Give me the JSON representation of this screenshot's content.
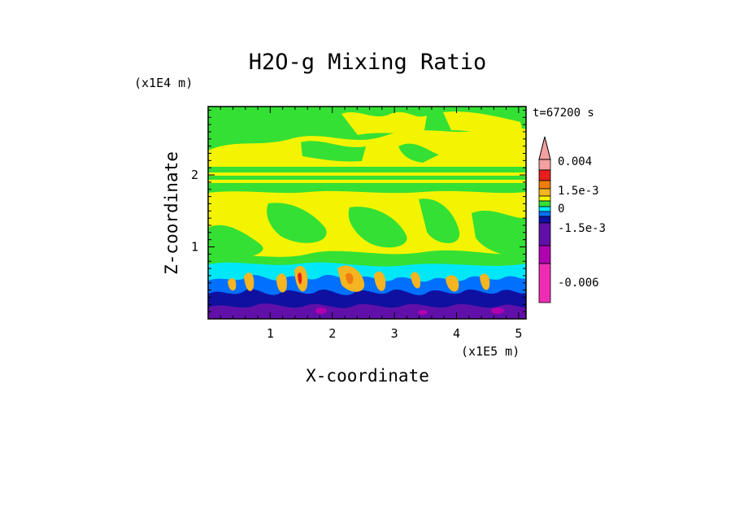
{
  "chart_data": {
    "type": "heatmap",
    "title": "H2O-g Mixing Ratio",
    "xlabel": "X-coordinate",
    "ylabel": "Z-coordinate",
    "x_scale_label": "(x1E5 m)",
    "y_scale_label": "(x1E4 m)",
    "time_label": "t=67200 s",
    "xlim": [
      0,
      5.12
    ],
    "ylim": [
      0,
      2.95
    ],
    "x_ticks": [
      "1",
      "2",
      "3",
      "4",
      "5"
    ],
    "y_ticks": [
      "1",
      "2"
    ],
    "colorbar": {
      "extend": "max",
      "tick_labels": [
        "0.004",
        "1.5e-3",
        "0",
        "-1.5e-3",
        "-0.006"
      ],
      "colors_top_to_bottom": [
        "#f4a0a0",
        "#e81e1e",
        "#f07c10",
        "#f5b520",
        "#f4f400",
        "#34e034",
        "#00e8f8",
        "#0070ff",
        "#1010a0",
        "#6010a8",
        "#b000b0",
        "#f02cb4"
      ]
    },
    "regions": [
      {
        "name": "upper green layer",
        "color": "#34e034"
      },
      {
        "name": "yellow mid layer",
        "color": "#f4f400"
      },
      {
        "name": "cyan band",
        "color": "#00e8f8"
      },
      {
        "name": "blue/purple boundary layer",
        "color": "#1010a0"
      },
      {
        "name": "orange plumes",
        "color": "#f5b520"
      }
    ]
  }
}
